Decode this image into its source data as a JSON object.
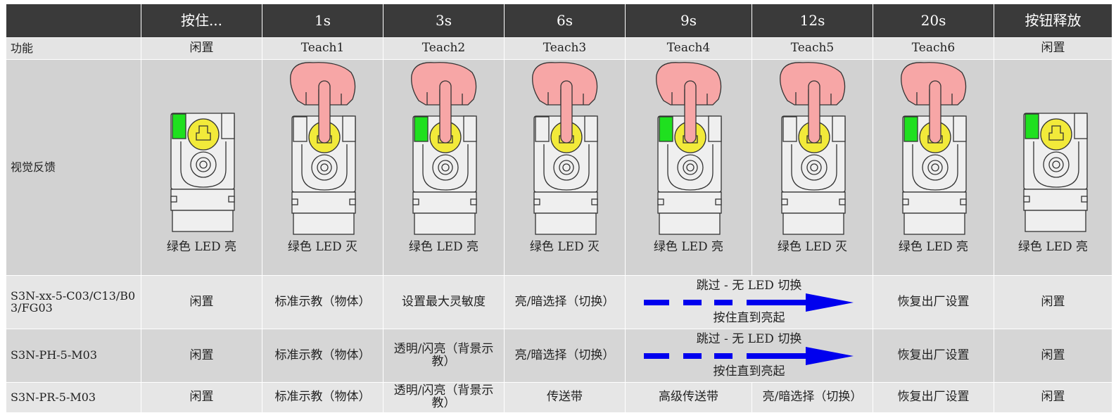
{
  "table": {
    "header": [
      "按住...",
      "1s",
      "3s",
      "6s",
      "9s",
      "12s",
      "20s",
      "按钮释放"
    ],
    "function_row": {
      "label": "功能",
      "cells": [
        "闲置",
        "Teach1",
        "Teach2",
        "Teach3",
        "Teach4",
        "Teach5",
        "Teach6",
        "闲置"
      ]
    },
    "visual_row": {
      "label": "视觉反馈",
      "cells": [
        "绿色 LED 亮",
        "绿色 LED 灭",
        "绿色 LED 亮",
        "绿色 LED 灭",
        "绿色 LED 亮",
        "绿色 LED 灭",
        "绿色 LED 亮",
        "绿色 LED 亮"
      ]
    },
    "product_rows": [
      {
        "label": "S3N-xx-5-C03/C13/B03/FG03",
        "cells": [
          "闲置",
          "标准示教（物体）",
          "设置最大灵敏度",
          "亮/暗选择（切换）",
          {
            "top": "跳过 - 无 LED 切换",
            "bottom": "按住直到亮起"
          },
          "恢复出厂设置",
          "闲置"
        ]
      },
      {
        "label": "S3N-PH-5-M03",
        "cells": [
          "闲置",
          "标准示教（物体）",
          "透明/闪亮（背景示教）",
          "亮/暗选择（切换）",
          {
            "top": "跳过 - 无 LED 切换",
            "bottom": "按住直到亮起"
          },
          "恢复出厂设置",
          "闲置"
        ]
      },
      {
        "label": "S3N-PR-5-M03",
        "cells": [
          "闲置",
          "标准示教（物体）",
          "透明/闪亮（背景示教）",
          "传送带",
          "高级传送带",
          "亮/暗选择（切换）",
          "恢复出厂设置",
          "闲置"
        ]
      }
    ]
  }
}
